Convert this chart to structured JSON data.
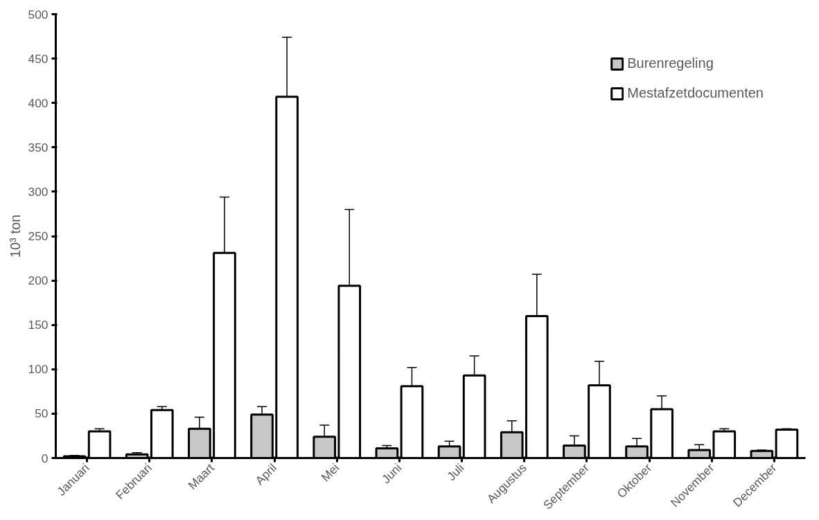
{
  "chart_data": {
    "type": "bar",
    "ylabel": "10³ ton",
    "categories": [
      "Januari",
      "Februari",
      "Maart",
      "April",
      "Mei",
      "Juni",
      "Juli",
      "Augustus",
      "September",
      "Oktober",
      "November",
      "December"
    ],
    "series": [
      {
        "name": "Burenregeling",
        "color": "#c8c8c8",
        "values": [
          2,
          4,
          33,
          49,
          24,
          11,
          13,
          29,
          14,
          13,
          9,
          8
        ],
        "errors": [
          1,
          2,
          13,
          9,
          13,
          3,
          6,
          13,
          11,
          9,
          6,
          1
        ]
      },
      {
        "name": "Mestafzetdocumenten",
        "color": "#ffffff",
        "values": [
          30,
          54,
          231,
          407,
          194,
          81,
          93,
          160,
          82,
          55,
          30,
          32
        ],
        "errors": [
          3,
          4,
          63,
          67,
          86,
          21,
          22,
          47,
          27,
          15,
          3,
          1
        ]
      }
    ],
    "ylim": [
      0,
      500
    ],
    "yticks": [
      0,
      50,
      100,
      150,
      200,
      250,
      300,
      350,
      400,
      450,
      500
    ],
    "grid": false,
    "legend": "top right"
  }
}
